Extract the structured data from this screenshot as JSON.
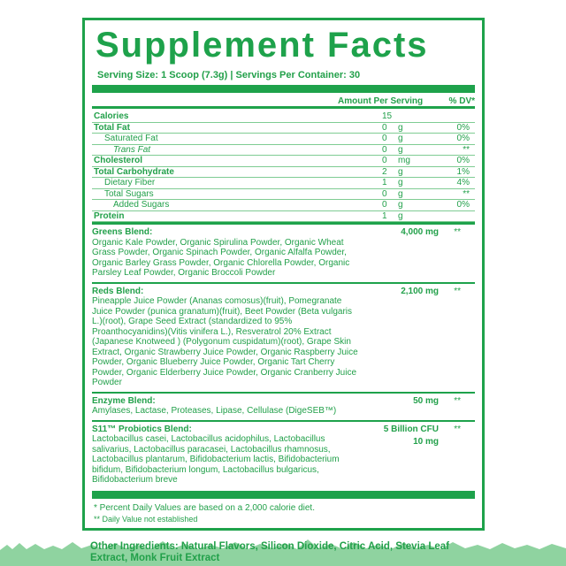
{
  "title": "Supplement Facts",
  "serving": "Serving Size: 1 Scoop (7.3g) | Servings Per Container: 30",
  "header": {
    "amount": "Amount Per Serving",
    "dv": "% DV*"
  },
  "nutrients": [
    {
      "name": "Calories",
      "amount": "15",
      "unit": "",
      "dv": "",
      "bold": true,
      "indent": 0
    },
    {
      "name": "Total Fat",
      "amount": "0",
      "unit": "g",
      "dv": "0%",
      "bold": true,
      "indent": 0
    },
    {
      "name": "Saturated Fat",
      "amount": "0",
      "unit": "g",
      "dv": "0%",
      "indent": 1
    },
    {
      "name": "Trans Fat",
      "amount": "0",
      "unit": "g",
      "dv": "**",
      "indent": 2,
      "italic": true
    },
    {
      "name": "Cholesterol",
      "amount": "0",
      "unit": "mg",
      "dv": "0%",
      "bold": true,
      "indent": 0
    },
    {
      "name": "Total Carbohydrate",
      "amount": "2",
      "unit": "g",
      "dv": "1%",
      "bold": true,
      "indent": 0
    },
    {
      "name": "Dietary Fiber",
      "amount": "1",
      "unit": "g",
      "dv": "4%",
      "indent": 1
    },
    {
      "name": "Total Sugars",
      "amount": "0",
      "unit": "g",
      "dv": "**",
      "indent": 1
    },
    {
      "name": "Added Sugars",
      "amount": "0",
      "unit": "g",
      "dv": "0%",
      "indent": 2
    },
    {
      "name": "Protein",
      "amount": "1",
      "unit": "g",
      "dv": "",
      "bold": true,
      "indent": 0
    }
  ],
  "blends": [
    {
      "name": "Greens Blend:",
      "amount": "4,000 mg",
      "dv": "**",
      "desc": "Organic Kale Powder, Organic Spirulina Powder, Organic Wheat Grass Powder, Organic Spinach Powder, Organic Alfalfa Powder, Organic Barley Grass Powder, Organic Chlorella Powder, Organic Parsley Leaf Powder, Organic Broccoli Powder"
    },
    {
      "name": "Reds Blend:",
      "amount": "2,100 mg",
      "dv": "**",
      "desc": "Pineapple Juice Powder (Ananas comosus)(fruit), Pomegranate Juice Powder (punica granatum)(fruit), Beet Powder (Beta vulgaris L.)(root), Grape Seed Extract (standardized to 95% Proanthocyanidins)(Vitis vinifera L.), Resveratrol 20% Extract (Japanese Knotweed ) (Polygonum cuspidatum)(root), Grape Skin Extract, Organic Strawberry Juice Powder, Organic Raspberry Juice Powder, Organic Blueberry Juice Powder, Organic Tart Cherry Powder, Organic Elderberry Juice Powder, Organic Cranberry Juice Powder"
    },
    {
      "name": "Enzyme Blend:",
      "amount": "50 mg",
      "dv": "**",
      "desc": "Amylases, Lactase, Proteases, Lipase, Cellulase (DigeSEB™)"
    },
    {
      "name": "S11™ Probiotics Blend:",
      "amount": "5 Billion CFU",
      "amount2": "10 mg",
      "dv": "**",
      "desc": "Lactobacillus casei, Lactobacillus acidophilus, Lactobacillus salivarius, Lactobacillus paracasei, Lactobacillus rhamnosus, Lactobacillus plantarum, Bifidobacterium lactis, Bifidobacterium bifidum, Bifidobacterium longum, Lactobacillus bulgaricus, Bifidobacterium breve"
    }
  ],
  "footnotes": [
    "* Percent Daily Values are based on a 2,000 calorie diet.",
    "** Daily Value not established"
  ],
  "other_ingredients": "Other Ingredients: Natural Flavors, Silicon Dioxide, Citric Acid, Stevia Leaf Extract, Monk Fruit Extract",
  "colors": {
    "brand_green": "#1ea24b",
    "grass": "#8fd3a0"
  }
}
